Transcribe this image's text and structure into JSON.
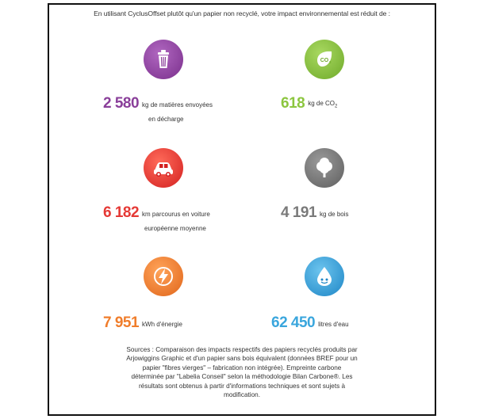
{
  "intro": "En utilisant CyclusOffset plutôt qu'un papier non recyclé, votre impact environnemental est réduit de :",
  "colors": {
    "purple": "#8a3f9a",
    "green": "#8cc63f",
    "red": "#e53935",
    "gray": "#7a7a7a",
    "orange": "#f07d2b",
    "blue": "#3aa6dd"
  },
  "stats": [
    {
      "icon": "trash-bin-icon",
      "number": "2 580",
      "unit": "kg de matières envoyées",
      "unit_line2": "en décharge"
    },
    {
      "icon": "co2-leaf-icon",
      "number": "618",
      "unit": "kg de CO",
      "unit_sub": "2"
    },
    {
      "icon": "car-icon",
      "number": "6 182",
      "unit": "km parcourus en voiture",
      "unit_line2": "européenne moyenne"
    },
    {
      "icon": "tree-icon",
      "number": "4 191",
      "unit": "kg de bois"
    },
    {
      "icon": "lightning-icon",
      "number": "7 951",
      "unit": "kWh d'énergie"
    },
    {
      "icon": "water-drop-icon",
      "number": "62 450",
      "unit": "litres d'eau"
    }
  ],
  "sources": {
    "line1": "Sources : Comparaison des impacts respectifs des papiers recyclés produits par",
    "line2": "Arjowiggins Graphic et d'un papier sans bois équivalent (données BREF pour un",
    "line3": "papier \"fibres vierges\" – fabrication non intégrée). Empreinte carbone",
    "line4": "déterminée par \"Labelia Conseil\" selon la méthodologie Bilan Carbone®. Les",
    "line5": "résultats sont obtenus à partir d'informations techniques et sont sujets à",
    "line6": "modification."
  }
}
